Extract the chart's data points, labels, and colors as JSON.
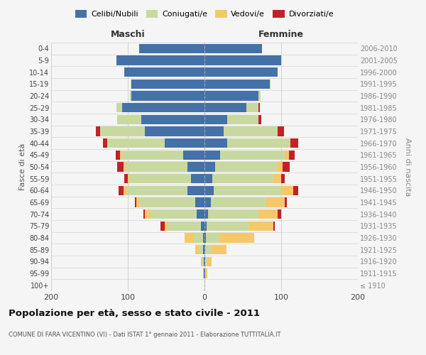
{
  "age_groups": [
    "100+",
    "95-99",
    "90-94",
    "85-89",
    "80-84",
    "75-79",
    "70-74",
    "65-69",
    "60-64",
    "55-59",
    "50-54",
    "45-49",
    "40-44",
    "35-39",
    "30-34",
    "25-29",
    "20-24",
    "15-19",
    "10-14",
    "5-9",
    "0-4"
  ],
  "birth_years": [
    "≤ 1910",
    "1911-1915",
    "1916-1920",
    "1921-1925",
    "1926-1930",
    "1931-1935",
    "1936-1940",
    "1941-1945",
    "1946-1950",
    "1951-1955",
    "1956-1960",
    "1961-1965",
    "1966-1970",
    "1971-1975",
    "1976-1980",
    "1981-1985",
    "1986-1990",
    "1991-1995",
    "1996-2000",
    "2001-2005",
    "2006-2010"
  ],
  "colors": {
    "celibe": "#4471a8",
    "coniugato": "#c8d9a0",
    "vedovo": "#f5c96a",
    "divorziato": "#c0222a"
  },
  "maschi": {
    "celibe": [
      0,
      1,
      1,
      2,
      2,
      5,
      10,
      12,
      22,
      18,
      22,
      28,
      52,
      78,
      82,
      107,
      95,
      95,
      105,
      115,
      85
    ],
    "coniugato": [
      0,
      1,
      2,
      5,
      12,
      42,
      60,
      72,
      80,
      80,
      82,
      80,
      75,
      58,
      32,
      8,
      2,
      1,
      0,
      0,
      0
    ],
    "vedovo": [
      0,
      0,
      2,
      5,
      12,
      5,
      8,
      5,
      4,
      2,
      2,
      2,
      0,
      0,
      0,
      0,
      0,
      0,
      0,
      0,
      0
    ],
    "divorziato": [
      0,
      0,
      0,
      0,
      0,
      5,
      2,
      2,
      6,
      5,
      8,
      6,
      5,
      6,
      0,
      0,
      0,
      0,
      0,
      0,
      0
    ]
  },
  "femmine": {
    "nubile": [
      0,
      1,
      1,
      1,
      2,
      3,
      5,
      8,
      12,
      10,
      14,
      20,
      30,
      25,
      30,
      55,
      70,
      85,
      95,
      100,
      75
    ],
    "coniugata": [
      0,
      1,
      3,
      8,
      18,
      55,
      65,
      72,
      88,
      80,
      80,
      85,
      80,
      70,
      40,
      15,
      3,
      1,
      0,
      0,
      0
    ],
    "vedova": [
      0,
      2,
      5,
      20,
      45,
      32,
      25,
      25,
      16,
      10,
      8,
      5,
      2,
      0,
      0,
      0,
      0,
      0,
      0,
      0,
      0
    ],
    "divorziata": [
      0,
      0,
      0,
      0,
      0,
      2,
      5,
      2,
      6,
      5,
      9,
      8,
      10,
      9,
      4,
      2,
      0,
      0,
      0,
      0,
      0
    ]
  },
  "xlim": 200,
  "title": "Popolazione per età, sesso e stato civile - 2011",
  "subtitle": "COMUNE DI FARA VICENTINO (VI) - Dati ISTAT 1° gennaio 2011 - Elaborazione TUTTITALIA.IT",
  "ylabel_left": "Fasce di età",
  "ylabel_right": "Anni di nascita",
  "header_left": "Maschi",
  "header_right": "Femmine",
  "legend_labels": [
    "Celibi/Nubili",
    "Coniugati/e",
    "Vedovi/e",
    "Divorziati/e"
  ],
  "background_color": "#f5f5f5"
}
